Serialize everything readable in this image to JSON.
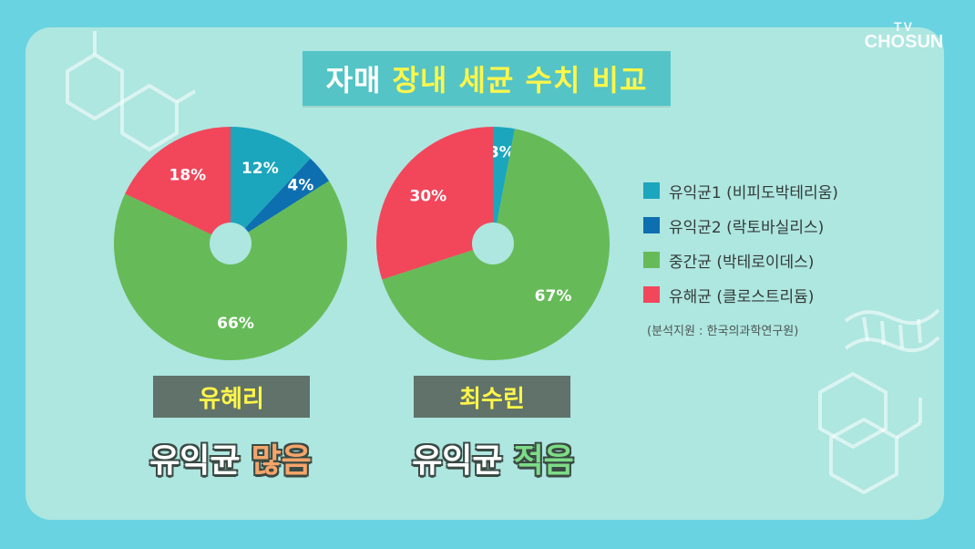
{
  "title": {
    "part1": "자매",
    "part2": "장내 세균 수치 비교"
  },
  "logo": {
    "line1": "TV",
    "line2": "CHOSUN"
  },
  "colors": {
    "background": "#6ad3e2",
    "panel": "#aee6e0",
    "title_box": "#54c4c6",
    "title_highlight": "#fff64a",
    "name_box": "#607269",
    "beneficial1": "#1ba6bd",
    "beneficial2": "#0e6fb0",
    "intermediate": "#66bb58",
    "harmful": "#f2465b"
  },
  "legend": {
    "items": [
      {
        "label": "유익균1 (비피도박테리움)",
        "color": "#1ba6bd"
      },
      {
        "label": "유익균2 (락토바실리스)",
        "color": "#0e6fb0"
      },
      {
        "label": "중간균 (박테로이데스)",
        "color": "#66bb58"
      },
      {
        "label": "유해균 (클로스트리듐)",
        "color": "#f2465b"
      }
    ],
    "source": "(분석지원 : 한국의과학연구원)"
  },
  "people": [
    {
      "name": "유혜리",
      "result_prefix": "유익균",
      "result_highlight": "많음"
    },
    {
      "name": "최수린",
      "result_prefix": "유익균",
      "result_highlight": "적음"
    }
  ],
  "chart_data": [
    {
      "type": "pie",
      "donut": true,
      "categories": [
        "유익균1 (비피도박테리움)",
        "유익균2 (락토바실리스)",
        "중간균 (박테로이데스)",
        "유해균 (클로스트리듐)"
      ],
      "values": [
        12,
        4,
        66,
        18
      ],
      "labels": [
        "12%",
        "4%",
        "66%",
        "18%"
      ],
      "colors": [
        "#1ba6bd",
        "#0e6fb0",
        "#66bb58",
        "#f2465b"
      ],
      "title": "유혜리"
    },
    {
      "type": "pie",
      "donut": true,
      "categories": [
        "유익균1 (비피도박테리움)",
        "중간균 (박테로이데스)",
        "유해균 (클로스트리듐)"
      ],
      "values": [
        3,
        67,
        30
      ],
      "labels": [
        "3%",
        "67%",
        "30%"
      ],
      "colors": [
        "#1ba6bd",
        "#66bb58",
        "#f2465b"
      ],
      "title": "최수린"
    }
  ]
}
